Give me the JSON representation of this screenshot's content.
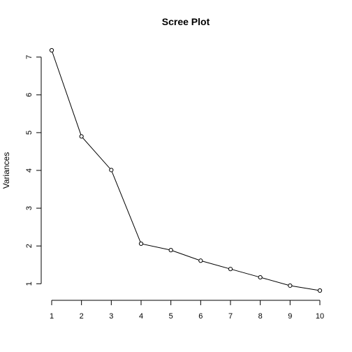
{
  "chart_data": {
    "type": "line",
    "title": "Scree  Plot",
    "xlabel": "",
    "ylabel": "Variances",
    "x": [
      1,
      2,
      3,
      4,
      5,
      6,
      7,
      8,
      9,
      10
    ],
    "series": [
      {
        "values": [
          7.18,
          4.9,
          4.01,
          2.06,
          1.89,
          1.61,
          1.39,
          1.17,
          0.95,
          0.82
        ],
        "color": "#000000"
      }
    ],
    "xticks": [
      1,
      2,
      3,
      4,
      5,
      6,
      7,
      8,
      9,
      10
    ],
    "yticks": [
      1,
      2,
      3,
      4,
      5,
      6,
      7
    ],
    "xlim": [
      1,
      10
    ],
    "ylim": [
      0.82,
      7.18
    ],
    "grid": false,
    "markers": "open-circle"
  }
}
